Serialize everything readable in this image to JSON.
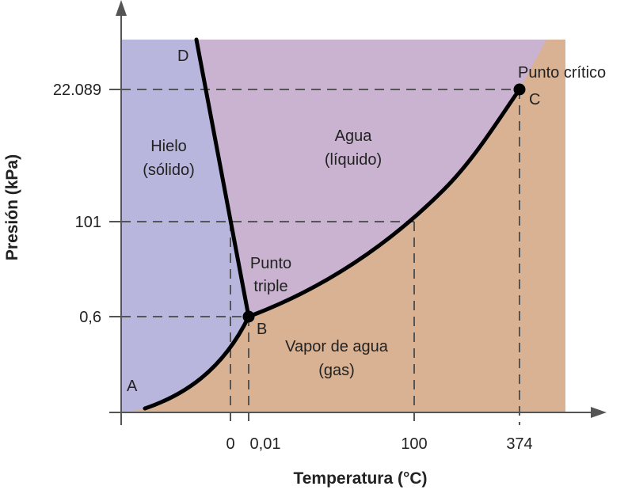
{
  "axes": {
    "xlabel": "Temperatura (°C)",
    "ylabel": "Presión (kPa)",
    "xticks": [
      "0",
      "0,01",
      "100",
      "374"
    ],
    "yticks": [
      "22.089",
      "101",
      "0,6"
    ]
  },
  "regions": {
    "solid": {
      "line1": "Hielo",
      "line2": "(sólido)",
      "color": "#b9b6dd"
    },
    "liquid": {
      "line1": "Agua",
      "line2": "(líquido)",
      "color": "#c9b3d0"
    },
    "gas": {
      "line1": "Vapor de agua",
      "line2": "(gas)",
      "color": "#d9b293"
    }
  },
  "points": {
    "A": "A",
    "B": "B",
    "C": "C",
    "D": "D",
    "triple_line1": "Punto",
    "triple_line2": "triple",
    "critical": "Punto crítico"
  }
}
